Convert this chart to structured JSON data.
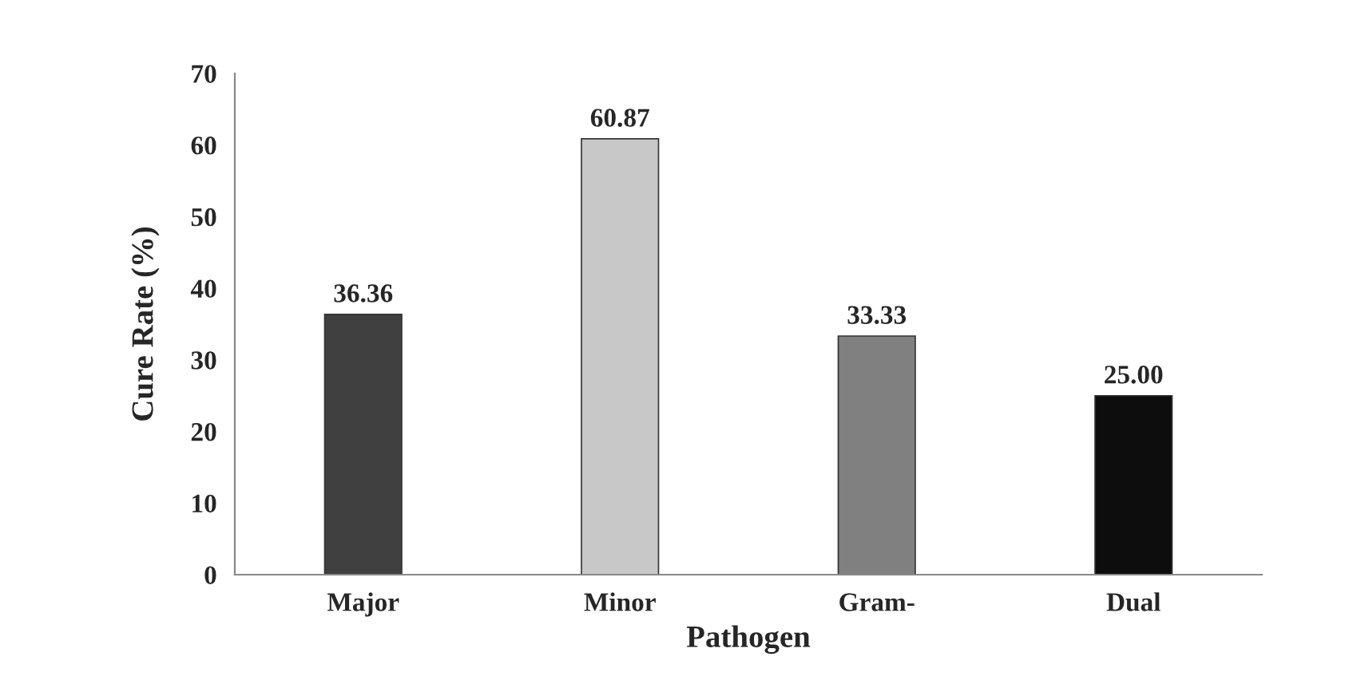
{
  "chart_data": {
    "type": "bar",
    "xlabel": "Pathogen",
    "ylabel": "Cure Rate (%)",
    "categories": [
      "Major",
      "Minor",
      "Gram-",
      "Dual"
    ],
    "values": [
      36.36,
      60.87,
      33.33,
      25.0
    ],
    "value_labels": [
      "36.36",
      "60.87",
      "33.33",
      "25.00"
    ],
    "colors": [
      "#404040",
      "#c8c8c8",
      "#808080",
      "#0d0d0d"
    ],
    "ylim": [
      0,
      70
    ],
    "yticks": [
      0,
      10,
      20,
      30,
      40,
      50,
      60,
      70
    ],
    "grid": false
  }
}
